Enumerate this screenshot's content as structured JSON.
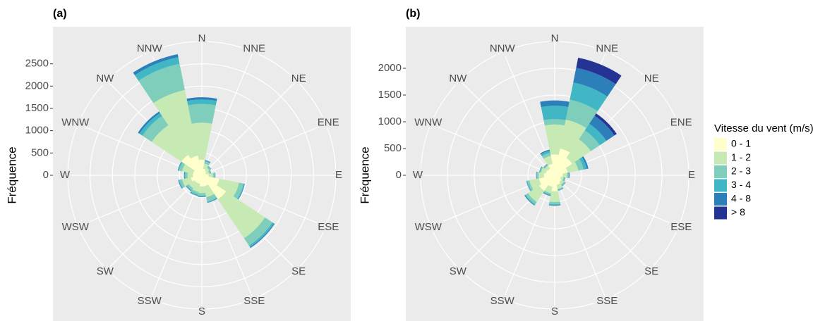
{
  "legend": {
    "title": "Vitesse du vent (m/s)",
    "items": [
      {
        "name": "0 - 1",
        "color": "#ffffcc"
      },
      {
        "name": "1 - 2",
        "color": "#c7e9b4"
      },
      {
        "name": "2 - 3",
        "color": "#7fcdbb"
      },
      {
        "name": "3 - 4",
        "color": "#41b6c4"
      },
      {
        "name": "4 - 8",
        "color": "#2c7fb8"
      },
      {
        "name": "> 8",
        "color": "#253494"
      }
    ]
  },
  "chart_data": [
    {
      "type": "windrose",
      "title": "(a)",
      "y_label": "Fréquence",
      "categories": [
        "N",
        "NNE",
        "NE",
        "ENE",
        "E",
        "ESE",
        "SE",
        "SSE",
        "S",
        "SSW",
        "SW",
        "WSW",
        "W",
        "WNW",
        "NW",
        "NNW"
      ],
      "ylim": [
        0,
        3000
      ],
      "yticks": [
        0,
        500,
        1000,
        1500,
        2000,
        2500
      ],
      "grid": true,
      "series": [
        {
          "values": [
            350,
            150,
            120,
            100,
            150,
            400,
            650,
            250,
            250,
            200,
            200,
            250,
            200,
            200,
            550,
            450
          ]
        },
        {
          "values": [
            830,
            120,
            80,
            70,
            100,
            450,
            1050,
            250,
            150,
            180,
            150,
            200,
            120,
            250,
            800,
            1500
          ]
        },
        {
          "values": [
            420,
            50,
            40,
            30,
            40,
            100,
            200,
            100,
            60,
            60,
            50,
            60,
            50,
            70,
            250,
            600
          ]
        },
        {
          "values": [
            100,
            20,
            10,
            10,
            10,
            20,
            40,
            20,
            20,
            20,
            20,
            20,
            20,
            20,
            80,
            150
          ]
        },
        {
          "values": [
            50,
            10,
            5,
            5,
            5,
            10,
            20,
            10,
            10,
            10,
            10,
            10,
            10,
            10,
            40,
            70
          ]
        },
        {
          "values": [
            0,
            0,
            0,
            0,
            0,
            0,
            0,
            0,
            0,
            0,
            0,
            0,
            0,
            0,
            0,
            0
          ]
        }
      ]
    },
    {
      "type": "windrose",
      "title": "(b)",
      "y_label": "Fréquence",
      "categories": [
        "N",
        "NNE",
        "NE",
        "ENE",
        "E",
        "ESE",
        "SE",
        "SSE",
        "S",
        "SSW",
        "SW",
        "WSW",
        "W",
        "WNW",
        "NW",
        "NNW"
      ],
      "ylim": [
        0,
        2500
      ],
      "yticks": [
        0,
        500,
        1000,
        1500,
        2000
      ],
      "grid": true,
      "series": [
        {
          "values": [
            390,
            510,
            390,
            250,
            150,
            120,
            150,
            180,
            300,
            220,
            350,
            300,
            200,
            170,
            150,
            220
          ]
        },
        {
          "values": [
            560,
            550,
            420,
            200,
            80,
            50,
            60,
            80,
            200,
            120,
            250,
            180,
            100,
            90,
            70,
            150
          ]
        },
        {
          "values": [
            100,
            380,
            200,
            100,
            30,
            20,
            20,
            20,
            40,
            30,
            50,
            40,
            30,
            20,
            20,
            60
          ]
        },
        {
          "values": [
            250,
            330,
            150,
            60,
            10,
            10,
            10,
            10,
            20,
            15,
            20,
            15,
            10,
            10,
            10,
            40
          ]
        },
        {
          "values": [
            100,
            280,
            180,
            30,
            10,
            5,
            5,
            5,
            10,
            10,
            10,
            5,
            5,
            5,
            5,
            20
          ]
        },
        {
          "values": [
            0,
            190,
            50,
            0,
            0,
            0,
            0,
            0,
            0,
            0,
            0,
            0,
            0,
            0,
            0,
            0
          ]
        }
      ]
    }
  ]
}
